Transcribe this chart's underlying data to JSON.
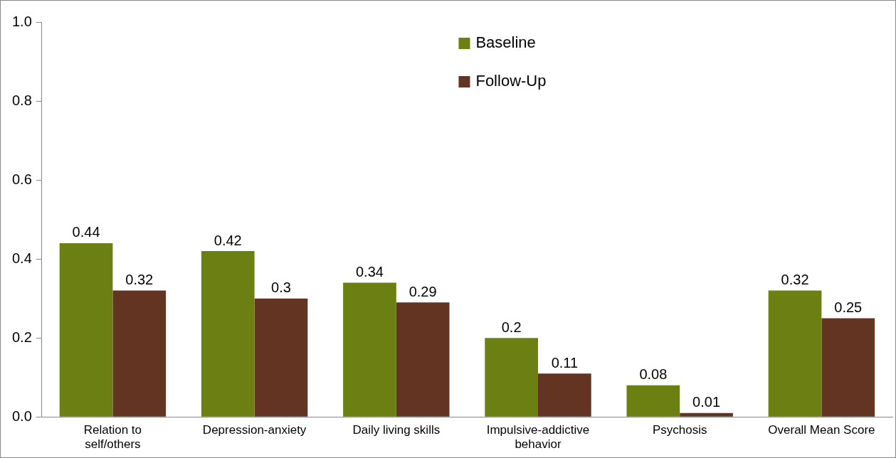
{
  "chart_data": {
    "type": "bar",
    "categories": [
      "Relation to self/others",
      "Depression-anxiety",
      "Daily living skills",
      "Impulsive-addictive behavior",
      "Psychosis",
      "Overall Mean Score"
    ],
    "series": [
      {
        "name": "Baseline",
        "color": "#6b7f12",
        "values": [
          0.44,
          0.42,
          0.34,
          0.2,
          0.08,
          0.32
        ]
      },
      {
        "name": "Follow-Up",
        "color": "#633421",
        "values": [
          0.32,
          0.3,
          0.29,
          0.11,
          0.01,
          0.25
        ]
      }
    ],
    "ylim": [
      0,
      1
    ],
    "yticks": [
      {
        "value": 0,
        "label": "0.0"
      },
      {
        "value": 0.2,
        "label": "0.2"
      },
      {
        "value": 0.4,
        "label": "0.4"
      },
      {
        "value": 0.6,
        "label": "0.6"
      },
      {
        "value": 0.8,
        "label": "0.8"
      },
      {
        "value": 1,
        "label": "1.0"
      }
    ],
    "grid": false,
    "legend": "top",
    "data_labels": true
  }
}
